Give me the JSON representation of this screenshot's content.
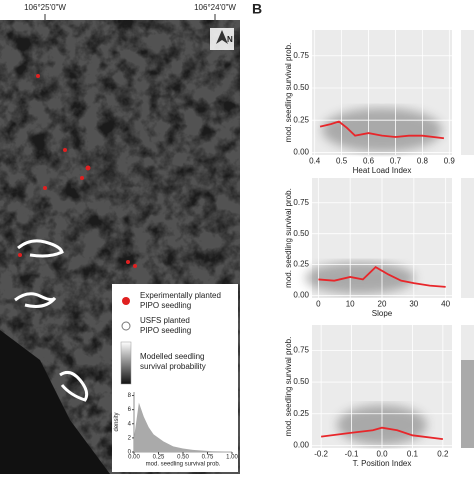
{
  "panel_label": "B",
  "map": {
    "lon_labels": [
      "106°25'0\"W",
      "106°24'0\"W"
    ],
    "north": "N",
    "legend": {
      "experimental": [
        "Experimentally planted",
        "PIPO seedling"
      ],
      "usfs": [
        "USFS planted",
        "PIPO seedling"
      ],
      "modelled": [
        "Modelled seedling",
        "survival probability"
      ]
    }
  },
  "chart_data": [
    {
      "type": "area",
      "color": "#aaaaaa",
      "ylabel": "density",
      "xlabel": "mod. seedling survival prob.",
      "x": [
        0,
        0.05,
        0.1,
        0.15,
        0.2,
        0.3,
        0.4,
        0.5,
        0.6,
        0.8,
        1.0
      ],
      "values": [
        2,
        7,
        5,
        3.5,
        2.5,
        1.5,
        0.8,
        0.5,
        0.3,
        0.1,
        0.05
      ],
      "xlim": [
        0,
        1
      ],
      "ylim": [
        0,
        8.5
      ],
      "xticks": [
        {
          "value": 0,
          "label": "0.00"
        },
        {
          "value": 0.25,
          "label": "0.25"
        },
        {
          "value": 0.5,
          "label": "0.50"
        },
        {
          "value": 0.75,
          "label": "0.75"
        },
        {
          "value": 1,
          "label": "1.00"
        }
      ],
      "yticks": [
        0,
        2,
        4,
        6,
        8
      ]
    },
    {
      "type": "line",
      "color": "#e8262a",
      "ylabel": "mod. seedling survival prob.",
      "xlabel": "Heat Load Index",
      "grid": true,
      "x": [
        0.42,
        0.46,
        0.49,
        0.52,
        0.55,
        0.6,
        0.65,
        0.7,
        0.75,
        0.8,
        0.88
      ],
      "values": [
        0.2,
        0.22,
        0.24,
        0.19,
        0.13,
        0.15,
        0.13,
        0.12,
        0.13,
        0.13,
        0.11
      ],
      "xlim": [
        0.39,
        0.91
      ],
      "ylim": [
        -0.02,
        0.95
      ],
      "xticks": [
        0.4,
        0.5,
        0.6,
        0.7,
        0.8,
        0.9
      ],
      "yticks": [
        {
          "value": 0,
          "label": "0.00"
        },
        {
          "value": 0.25,
          "label": "0.25"
        },
        {
          "value": 0.5,
          "label": "0.50"
        },
        {
          "value": 0.75,
          "label": "0.75"
        }
      ]
    },
    {
      "type": "line",
      "color": "#e8262a",
      "ylabel": "mod. seedling survival prob.",
      "xlabel": "Slope",
      "grid": true,
      "x": [
        0,
        5,
        10,
        14,
        18,
        22,
        26,
        30,
        35,
        40
      ],
      "values": [
        0.13,
        0.12,
        0.15,
        0.13,
        0.23,
        0.17,
        0.12,
        0.1,
        0.08,
        0.07
      ],
      "xlim": [
        -2,
        42
      ],
      "ylim": [
        -0.02,
        0.95
      ],
      "xticks": [
        0,
        10,
        20,
        30,
        40
      ],
      "yticks": [
        {
          "value": 0,
          "label": "0.00"
        },
        {
          "value": 0.25,
          "label": "0.25"
        },
        {
          "value": 0.5,
          "label": "0.50"
        },
        {
          "value": 0.75,
          "label": "0.75"
        }
      ]
    },
    {
      "type": "line",
      "color": "#e8262a",
      "ylabel": "mod. seedling survival prob.",
      "xlabel": "T. Position Index",
      "grid": true,
      "x": [
        -0.2,
        -0.1,
        -0.03,
        0,
        0.05,
        0.1,
        0.2
      ],
      "values": [
        0.07,
        0.1,
        0.12,
        0.14,
        0.12,
        0.08,
        0.05
      ],
      "xlim": [
        -0.23,
        0.23
      ],
      "ylim": [
        -0.02,
        0.95
      ],
      "xticks": [
        -0.2,
        -0.1,
        {
          "value": 0,
          "label": "0.0"
        },
        0.1,
        0.2
      ],
      "yticks": [
        {
          "value": 0,
          "label": "0.00"
        },
        {
          "value": 0.25,
          "label": "0.25"
        },
        {
          "value": 0.5,
          "label": "0.50"
        },
        {
          "value": 0.75,
          "label": "0.75"
        }
      ]
    }
  ]
}
